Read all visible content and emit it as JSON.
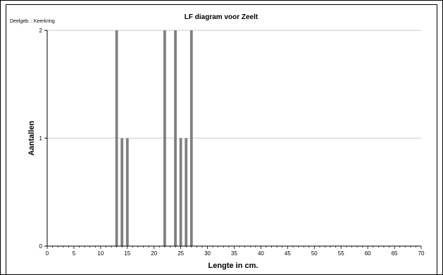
{
  "chart_data": {
    "type": "bar",
    "title": "LF diagram voor Zeelt",
    "subtitle": "Deelgeb. : Keerkring",
    "xlabel": "Lengte in cm.",
    "ylabel": "Aantallen",
    "xlim": [
      0,
      70
    ],
    "ylim": [
      0,
      2
    ],
    "xticks": [
      0,
      5,
      10,
      15,
      20,
      25,
      30,
      35,
      40,
      45,
      50,
      55,
      60,
      65,
      70
    ],
    "yticks": [
      0,
      1,
      2
    ],
    "grid": true,
    "bar_color": "#808080",
    "x": [
      13,
      14,
      15,
      22,
      24,
      25,
      26,
      27
    ],
    "values": [
      2,
      1,
      1,
      2,
      2,
      1,
      1,
      2
    ]
  }
}
